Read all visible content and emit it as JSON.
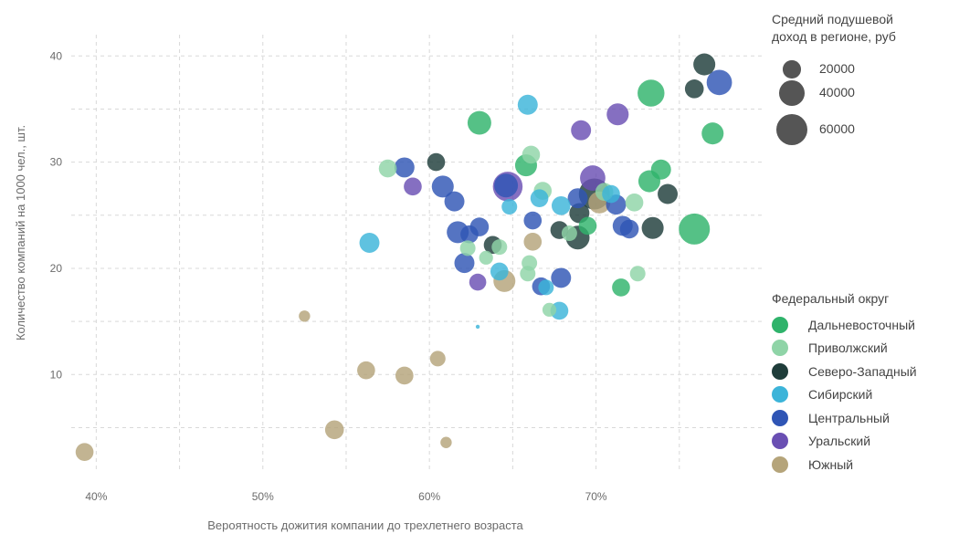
{
  "chart_data": {
    "type": "scatter",
    "title": "",
    "xlabel": "Вероятность дожития компании до трехлетнего возраста",
    "ylabel": "Количество компаний на 1000 чел., шт.",
    "xlim": [
      38.5,
      80
    ],
    "ylim": [
      1,
      42
    ],
    "x_ticks": [
      40,
      50,
      60,
      70
    ],
    "x_tick_labels": [
      "40%",
      "50%",
      "60%",
      "70%"
    ],
    "y_ticks": [
      10,
      20,
      30,
      40
    ],
    "y_tick_labels": [
      "10",
      "20",
      "30",
      "40"
    ],
    "grid": true,
    "size_legend": {
      "title_line1": "Средний подушевой",
      "title_line2": "доход в регионе, руб",
      "values": [
        20000,
        40000,
        60000
      ],
      "labels": [
        "20000",
        "40000",
        "60000"
      ]
    },
    "color_legend": {
      "title": "Федеральный округ"
    },
    "series": [
      {
        "name": "Дальневосточный",
        "color": "#2fb36b",
        "points": [
          {
            "x": 63.0,
            "y": 33.7,
            "income": 35000
          },
          {
            "x": 65.8,
            "y": 29.7,
            "income": 30000
          },
          {
            "x": 69.5,
            "y": 24.0,
            "income": 20000
          },
          {
            "x": 71.5,
            "y": 18.2,
            "income": 20000
          },
          {
            "x": 73.3,
            "y": 36.5,
            "income": 45000
          },
          {
            "x": 73.2,
            "y": 28.2,
            "income": 30000
          },
          {
            "x": 73.9,
            "y": 29.3,
            "income": 25000
          },
          {
            "x": 75.9,
            "y": 23.7,
            "income": 60000
          },
          {
            "x": 77.0,
            "y": 32.7,
            "income": 30000
          }
        ]
      },
      {
        "name": "Приволжский",
        "color": "#8fd4a7",
        "points": [
          {
            "x": 57.5,
            "y": 29.4,
            "income": 20000
          },
          {
            "x": 62.3,
            "y": 21.9,
            "income": 15000
          },
          {
            "x": 63.4,
            "y": 21.0,
            "income": 12000
          },
          {
            "x": 64.2,
            "y": 22.0,
            "income": 15000
          },
          {
            "x": 66.0,
            "y": 20.5,
            "income": 15000
          },
          {
            "x": 65.9,
            "y": 19.5,
            "income": 15000
          },
          {
            "x": 66.1,
            "y": 30.7,
            "income": 20000
          },
          {
            "x": 66.8,
            "y": 27.3,
            "income": 20000
          },
          {
            "x": 67.2,
            "y": 16.1,
            "income": 12000
          },
          {
            "x": 68.4,
            "y": 23.3,
            "income": 15000
          },
          {
            "x": 70.5,
            "y": 27.2,
            "income": 20000
          },
          {
            "x": 72.3,
            "y": 26.2,
            "income": 20000
          },
          {
            "x": 72.5,
            "y": 19.5,
            "income": 15000
          }
        ]
      },
      {
        "name": "Северо-Западный",
        "color": "#1f3d3a",
        "points": [
          {
            "x": 60.4,
            "y": 30.0,
            "income": 20000
          },
          {
            "x": 63.8,
            "y": 22.2,
            "income": 20000
          },
          {
            "x": 67.8,
            "y": 23.6,
            "income": 20000
          },
          {
            "x": 68.9,
            "y": 22.9,
            "income": 35000
          },
          {
            "x": 69.0,
            "y": 25.2,
            "income": 25000
          },
          {
            "x": 69.9,
            "y": 27.0,
            "income": 60000
          },
          {
            "x": 73.4,
            "y": 23.8,
            "income": 30000
          },
          {
            "x": 74.3,
            "y": 27.0,
            "income": 25000
          },
          {
            "x": 75.9,
            "y": 36.9,
            "income": 22000
          },
          {
            "x": 76.5,
            "y": 39.2,
            "income": 30000
          }
        ]
      },
      {
        "name": "Сибирский",
        "color": "#3cb4d9",
        "points": [
          {
            "x": 56.4,
            "y": 22.4,
            "income": 25000
          },
          {
            "x": 64.2,
            "y": 19.7,
            "income": 20000
          },
          {
            "x": 64.8,
            "y": 25.8,
            "income": 15000
          },
          {
            "x": 65.9,
            "y": 35.4,
            "income": 25000
          },
          {
            "x": 66.6,
            "y": 26.6,
            "income": 20000
          },
          {
            "x": 67.0,
            "y": 18.2,
            "income": 15000
          },
          {
            "x": 67.8,
            "y": 16.0,
            "income": 20000
          },
          {
            "x": 67.9,
            "y": 25.9,
            "income": 22000
          },
          {
            "x": 70.9,
            "y": 27.0,
            "income": 20000
          },
          {
            "x": 62.9,
            "y": 14.5,
            "income": 1000
          }
        ]
      },
      {
        "name": "Центральный",
        "color": "#2f55b5",
        "points": [
          {
            "x": 58.5,
            "y": 29.5,
            "income": 25000
          },
          {
            "x": 60.8,
            "y": 27.7,
            "income": 30000
          },
          {
            "x": 61.5,
            "y": 26.3,
            "income": 25000
          },
          {
            "x": 61.7,
            "y": 23.4,
            "income": 30000
          },
          {
            "x": 62.1,
            "y": 20.5,
            "income": 25000
          },
          {
            "x": 62.4,
            "y": 23.2,
            "income": 20000
          },
          {
            "x": 63.0,
            "y": 23.9,
            "income": 22000
          },
          {
            "x": 64.6,
            "y": 27.8,
            "income": 35000
          },
          {
            "x": 66.2,
            "y": 24.5,
            "income": 20000
          },
          {
            "x": 66.7,
            "y": 18.3,
            "income": 20000
          },
          {
            "x": 67.9,
            "y": 19.1,
            "income": 25000
          },
          {
            "x": 68.9,
            "y": 26.6,
            "income": 25000
          },
          {
            "x": 71.2,
            "y": 26.0,
            "income": 25000
          },
          {
            "x": 71.6,
            "y": 24.0,
            "income": 25000
          },
          {
            "x": 72.0,
            "y": 23.7,
            "income": 22000
          },
          {
            "x": 77.4,
            "y": 37.5,
            "income": 40000
          }
        ]
      },
      {
        "name": "Уральский",
        "color": "#6a4fb3",
        "points": [
          {
            "x": 59.0,
            "y": 27.7,
            "income": 20000
          },
          {
            "x": 62.9,
            "y": 18.7,
            "income": 18000
          },
          {
            "x": 64.7,
            "y": 27.7,
            "income": 55000
          },
          {
            "x": 69.1,
            "y": 33.0,
            "income": 25000
          },
          {
            "x": 69.8,
            "y": 28.5,
            "income": 40000
          },
          {
            "x": 71.3,
            "y": 34.5,
            "income": 30000
          }
        ]
      },
      {
        "name": "Южный",
        "color": "#b5a47a",
        "points": [
          {
            "x": 39.3,
            "y": 2.7,
            "income": 20000
          },
          {
            "x": 52.5,
            "y": 15.5,
            "income": 8000
          },
          {
            "x": 54.3,
            "y": 4.8,
            "income": 22000
          },
          {
            "x": 56.2,
            "y": 10.4,
            "income": 20000
          },
          {
            "x": 58.5,
            "y": 9.9,
            "income": 20000
          },
          {
            "x": 60.5,
            "y": 11.5,
            "income": 15000
          },
          {
            "x": 61.0,
            "y": 3.6,
            "income": 8000
          },
          {
            "x": 64.5,
            "y": 18.8,
            "income": 30000
          },
          {
            "x": 66.2,
            "y": 22.5,
            "income": 20000
          },
          {
            "x": 70.2,
            "y": 26.2,
            "income": 30000
          }
        ]
      }
    ]
  }
}
